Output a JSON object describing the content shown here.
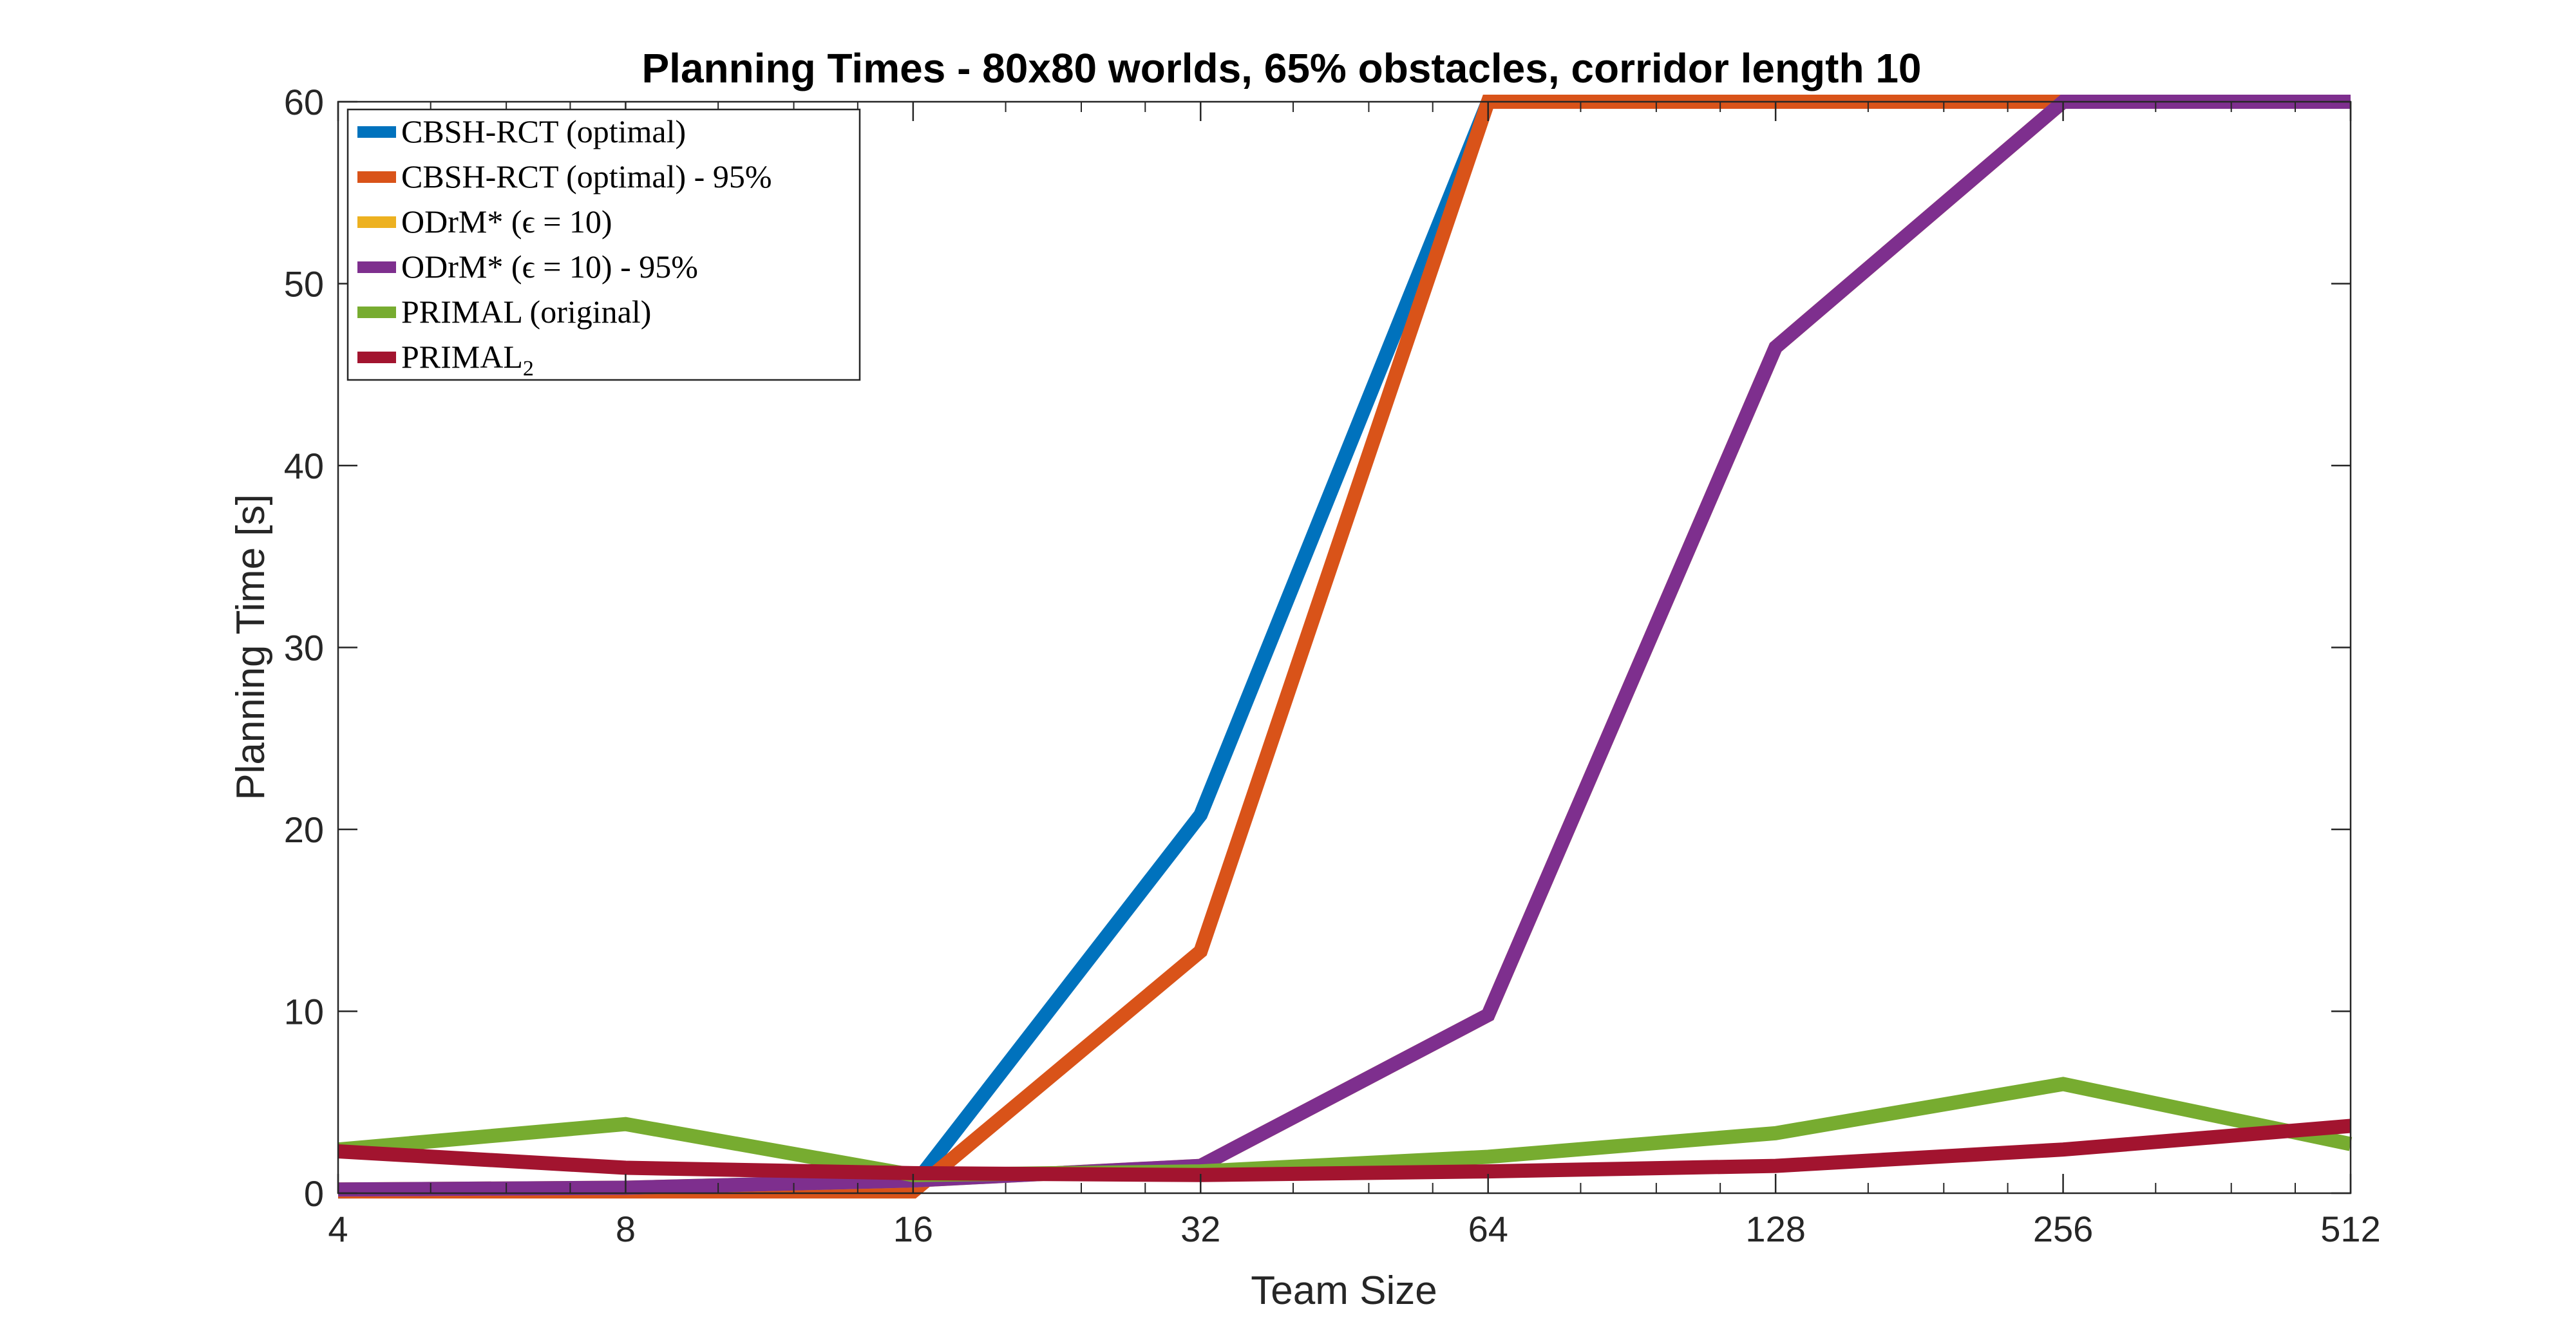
{
  "chart_data": {
    "type": "line",
    "title": "Planning Times - 80x80 worlds, 65% obstacles, corridor length 10",
    "xlabel": "Team Size",
    "ylabel": "Planning Time [s]",
    "x_scale": "log2",
    "x": [
      4,
      8,
      16,
      32,
      64,
      128,
      256,
      512
    ],
    "x_tick_labels": [
      "4",
      "8",
      "16",
      "32",
      "64",
      "128",
      "256",
      "512"
    ],
    "ylim": [
      0,
      60
    ],
    "y_ticks": [
      0,
      10,
      20,
      30,
      40,
      50,
      60
    ],
    "y_tick_labels": [
      "0",
      "10",
      "20",
      "30",
      "40",
      "50",
      "60"
    ],
    "grid": false,
    "box": true,
    "legend_position": "top-left",
    "series": [
      {
        "name": "CBSH-RCT (optimal)",
        "name_sub": "",
        "color": "#0072BD",
        "values": [
          0.1,
          0.2,
          0.4,
          20.8,
          60,
          60,
          60,
          60
        ]
      },
      {
        "name": "CBSH-RCT (optimal) - 95%",
        "name_sub": "",
        "color": "#D95319",
        "values": [
          0.1,
          0.1,
          0.1,
          13.3,
          60,
          60,
          60,
          60
        ]
      },
      {
        "name": "ODrM* (ϵ = 10)",
        "name_sub": "",
        "color": "#EDB120",
        "values": [
          0.2,
          0.3,
          0.7,
          1.5,
          9.8,
          46.5,
          60,
          60
        ]
      },
      {
        "name": "ODrM* (ϵ = 10) - 95%",
        "name_sub": "",
        "color": "#7E2F8E",
        "values": [
          0.2,
          0.3,
          0.7,
          1.5,
          9.8,
          46.5,
          60,
          60
        ]
      },
      {
        "name": "PRIMAL (original)",
        "name_sub": "",
        "color": "#77AC30",
        "values": [
          2.4,
          3.8,
          1.0,
          1.2,
          2.0,
          3.3,
          6.0,
          2.7
        ]
      },
      {
        "name": "PRIMAL",
        "name_sub": "2",
        "color": "#A2142F",
        "values": [
          2.3,
          1.4,
          1.1,
          1.0,
          1.2,
          1.5,
          2.4,
          3.7
        ]
      }
    ]
  }
}
